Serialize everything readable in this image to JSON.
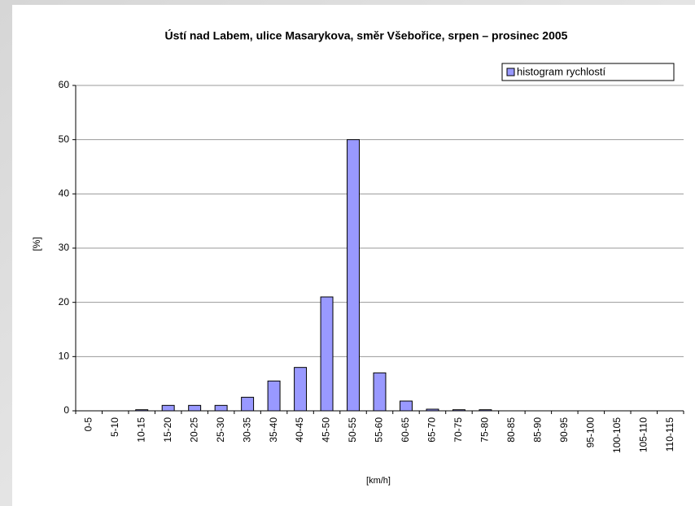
{
  "chart_data": {
    "type": "bar",
    "title": "Ústí nad Labem, ulice Masarykova, směr Všebořice, srpen – prosinec 2005",
    "x_label": "[km/h]",
    "y_label": "[%]",
    "categories": [
      "0-5",
      "5-10",
      "10-15",
      "15-20",
      "20-25",
      "25-30",
      "30-35",
      "35-40",
      "40-45",
      "45-50",
      "50-55",
      "55-60",
      "60-65",
      "65-70",
      "70-75",
      "75-80",
      "80-85",
      "85-90",
      "90-95",
      "95-100",
      "100-105",
      "105-110",
      "110-115"
    ],
    "series": [
      {
        "name": "histogram rychlostí",
        "color": "#9999ff",
        "values": [
          0,
          0,
          0.2,
          1,
          1,
          1,
          2.5,
          5.5,
          8,
          21,
          50,
          7,
          1.8,
          0.3,
          0.2,
          0.2,
          0,
          0,
          0,
          0,
          0,
          0,
          0
        ]
      }
    ],
    "ylim": [
      0,
      60
    ],
    "yticks": [
      0,
      10,
      20,
      30,
      40,
      50,
      60
    ],
    "grid": true,
    "legend": "top-right"
  }
}
